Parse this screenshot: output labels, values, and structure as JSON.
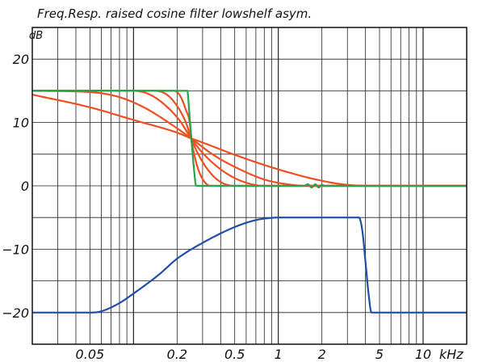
{
  "chart_data": {
    "type": "line",
    "title": "Freq.Resp. raised cosine filter lowshelf asym.",
    "y_unit": "dB",
    "x_unit": "kHz",
    "x_scale": "log",
    "xlim": [
      0.02,
      20
    ],
    "ylim": [
      -25,
      25
    ],
    "grid": true,
    "y_ticks": [
      {
        "value": 20,
        "label": "20"
      },
      {
        "value": 10,
        "label": "10"
      },
      {
        "value": 0,
        "label": "0"
      },
      {
        "value": -10,
        "label": "−10"
      },
      {
        "value": -20,
        "label": "−20"
      }
    ],
    "x_ticks": [
      {
        "value": 0.05,
        "label": "0.05"
      },
      {
        "value": 0.2,
        "label": "0.2"
      },
      {
        "value": 0.5,
        "label": "0.5"
      },
      {
        "value": 1,
        "label": "1"
      },
      {
        "value": 2,
        "label": "2"
      },
      {
        "value": 5,
        "label": "5"
      },
      {
        "value": 10,
        "label": "10"
      }
    ],
    "series": [
      {
        "color": "#f04e23",
        "x": [
          0.02,
          0.05,
          0.1,
          0.2,
          0.25,
          0.32,
          0.5,
          1,
          2,
          3.2,
          5,
          20
        ],
        "y": [
          14.4,
          12.4,
          10.4,
          8.4,
          7.5,
          6.6,
          4.9,
          2.6,
          0.8,
          0.1,
          0,
          0
        ]
      },
      {
        "color": "#f04e23",
        "x": [
          0.02,
          0.05,
          0.08,
          0.12,
          0.18,
          0.25,
          0.35,
          0.5,
          0.8,
          1.2,
          1.6,
          20
        ],
        "y": [
          15,
          14.8,
          14.0,
          12.3,
          9.8,
          7.5,
          5.0,
          3.0,
          1.0,
          0.2,
          0,
          0
        ]
      },
      {
        "color": "#f04e23",
        "x": [
          0.02,
          0.1,
          0.13,
          0.17,
          0.21,
          0.25,
          0.3,
          0.4,
          0.55,
          0.8,
          20
        ],
        "y": [
          15,
          15,
          14.4,
          12.5,
          10.2,
          7.5,
          5.2,
          2.6,
          0.8,
          0,
          0
        ]
      },
      {
        "color": "#f04e23",
        "x": [
          0.02,
          0.14,
          0.17,
          0.2,
          0.23,
          0.25,
          0.28,
          0.33,
          0.4,
          0.5,
          20
        ],
        "y": [
          15,
          15,
          14.4,
          12.6,
          10.0,
          7.5,
          5.0,
          2.4,
          0.6,
          0,
          0
        ]
      },
      {
        "color": "#f04e23",
        "x": [
          0.02,
          0.19,
          0.21,
          0.23,
          0.245,
          0.25,
          0.26,
          0.28,
          0.31,
          0.34,
          20
        ],
        "y": [
          15,
          15,
          14.2,
          12.0,
          9.8,
          7.5,
          5.4,
          2.6,
          0.6,
          0,
          0
        ]
      },
      {
        "color": "#2aa24a",
        "x": [
          0.02,
          0.236,
          0.238,
          0.242,
          0.248,
          0.255,
          0.262,
          0.268,
          0.272,
          0.3,
          1.5,
          1.6,
          1.7,
          1.8,
          1.9,
          2.0,
          2.1,
          20
        ],
        "y": [
          15,
          15,
          14.2,
          12.0,
          9.0,
          5.5,
          2.5,
          0.4,
          0,
          0,
          0,
          0.25,
          -0.25,
          0.25,
          -0.25,
          0.15,
          0,
          0
        ]
      },
      {
        "color": "#1f4fa8",
        "x": [
          0.02,
          0.05,
          0.06,
          0.08,
          0.1,
          0.15,
          0.2,
          0.3,
          0.5,
          0.7,
          0.9,
          1,
          1.5,
          2,
          3,
          3.6,
          3.8,
          4.0,
          4.2,
          4.4,
          20
        ],
        "y": [
          -20,
          -20,
          -19.8,
          -18.5,
          -17,
          -14,
          -11.5,
          -9,
          -6.5,
          -5.4,
          -5.05,
          -5,
          -5,
          -5,
          -5,
          -5,
          -7,
          -12,
          -17,
          -20,
          -20
        ]
      }
    ]
  }
}
